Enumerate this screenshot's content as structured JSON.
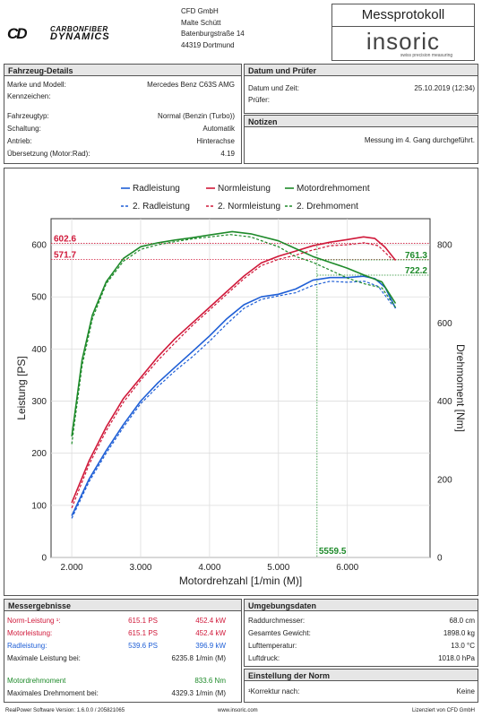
{
  "header": {
    "logo_cd": "CD",
    "brand_top": "CARBONFIBER",
    "brand_bottom": "DYNAMICS",
    "address": [
      "CFD GmbH",
      "Malte Schütt",
      "Batenburgstraße 14",
      "44319 Dortmund"
    ],
    "protocol_title": "Messprotokoll",
    "insoric": "insoric",
    "insoric_sub": "swiss precision measuring"
  },
  "vehicle": {
    "title": "Fahrzeug-Details",
    "rows": [
      {
        "label": "Marke und Modell:",
        "value": "Mercedes Benz C63S AMG"
      },
      {
        "label": "Kennzeichen:",
        "value": ""
      },
      {
        "label": "Fahrzeugtyp:",
        "value": "Normal (Benzin (Turbo))"
      },
      {
        "label": "Schaltung:",
        "value": "Automatik"
      },
      {
        "label": "Antrieb:",
        "value": "Hinterachse"
      },
      {
        "label": "Übersetzung (Motor:Rad):",
        "value": "4.19"
      }
    ]
  },
  "date": {
    "title": "Datum und Prüfer",
    "rows": [
      {
        "label": "Datum und Zeit:",
        "value": "25.10.2019 (12:34)"
      },
      {
        "label": "Prüfer:",
        "value": ""
      }
    ]
  },
  "notes": {
    "title": "Notizen",
    "text": "Messung im 4. Gang durchgeführt."
  },
  "chart_data": {
    "type": "line",
    "xlabel": "Motordrehzahl [1/min (M)]",
    "ylabel": "Leistung [PS]",
    "y2label": "Drehmoment [Nm]",
    "xlim": [
      1700,
      7200
    ],
    "ylim": [
      0,
      650
    ],
    "y2lim": [
      0,
      866.67
    ],
    "x_ticks": [
      {
        "v": 2000,
        "label": "2.000"
      },
      {
        "v": 3000,
        "label": "3.000"
      },
      {
        "v": 4000,
        "label": "4.000"
      },
      {
        "v": 5000,
        "label": "5.000"
      },
      {
        "v": 6000,
        "label": "6.000"
      }
    ],
    "y_ticks": [
      0,
      100,
      200,
      300,
      400,
      500,
      600
    ],
    "y2_ticks": [
      0,
      200,
      400,
      600,
      800
    ],
    "legend": [
      "Radleistung",
      "Normleistung",
      "Motordrehmoment",
      "2. Radleistung",
      "2. Normleistung",
      "2. Drehmoment"
    ],
    "colors": {
      "rad": "#1f5fd6",
      "norm": "#d0193a",
      "torque": "#1e8a2a"
    },
    "series": [
      {
        "name": "Radleistung",
        "axis": "left",
        "color": "#1f5fd6",
        "dash": false,
        "x": [
          2000,
          2250,
          2500,
          2750,
          3000,
          3250,
          3500,
          3750,
          4000,
          4250,
          4500,
          4750,
          5000,
          5250,
          5500,
          5750,
          6000,
          6235,
          6400,
          6550,
          6700
        ],
        "y": [
          80,
          150,
          205,
          255,
          300,
          335,
          365,
          395,
          425,
          458,
          485,
          500,
          505,
          515,
          532,
          537,
          537,
          539.6,
          535,
          518,
          478
        ]
      },
      {
        "name": "Normleistung",
        "axis": "left",
        "color": "#d0193a",
        "dash": false,
        "x": [
          2000,
          2250,
          2500,
          2750,
          3000,
          3250,
          3500,
          3750,
          4000,
          4250,
          4500,
          4750,
          5000,
          5250,
          5500,
          5750,
          6000,
          6235,
          6400,
          6550,
          6700
        ],
        "y": [
          105,
          185,
          250,
          305,
          345,
          385,
          420,
          450,
          480,
          510,
          540,
          565,
          578,
          588,
          598,
          605,
          610,
          615.1,
          612,
          595,
          570
        ]
      },
      {
        "name": "Motordrehmoment",
        "axis": "right",
        "color": "#1e8a2a",
        "dash": false,
        "x": [
          2000,
          2150,
          2300,
          2500,
          2750,
          3000,
          3250,
          3500,
          3750,
          4000,
          4329,
          4600,
          5000,
          5250,
          5500,
          5750,
          6000,
          6250,
          6500,
          6700
        ],
        "y": [
          310,
          505,
          620,
          705,
          765,
          795,
          805,
          812,
          818,
          825,
          833.6,
          828,
          810,
          790,
          770,
          755,
          740,
          722,
          705,
          650
        ]
      },
      {
        "name": "2. Radleistung",
        "axis": "left",
        "color": "#1f5fd6",
        "dash": true,
        "x": [
          2000,
          2250,
          2500,
          2750,
          3000,
          3250,
          3500,
          3750,
          4000,
          4250,
          4500,
          4750,
          5000,
          5250,
          5500,
          5750,
          6000,
          6250,
          6450,
          6650
        ],
        "y": [
          75,
          145,
          200,
          250,
          295,
          328,
          358,
          385,
          415,
          448,
          478,
          495,
          502,
          508,
          522,
          530,
          528,
          530,
          520,
          485
        ]
      },
      {
        "name": "2. Normleistung",
        "axis": "left",
        "color": "#d0193a",
        "dash": true,
        "x": [
          2000,
          2250,
          2500,
          2750,
          3000,
          3250,
          3500,
          3750,
          4000,
          4250,
          4500,
          4750,
          5000,
          5250,
          5500,
          5750,
          6000,
          6250,
          6450,
          6650
        ],
        "y": [
          95,
          178,
          243,
          298,
          340,
          378,
          412,
          445,
          475,
          505,
          535,
          560,
          572,
          580,
          590,
          598,
          600,
          604,
          598,
          572
        ]
      },
      {
        "name": "2. Drehmoment",
        "axis": "right",
        "color": "#1e8a2a",
        "dash": true,
        "x": [
          2000,
          2150,
          2300,
          2500,
          2750,
          3000,
          3250,
          3500,
          3750,
          4000,
          4300,
          4600,
          5000,
          5250,
          5500,
          5750,
          6000,
          6250,
          6500,
          6700
        ],
        "y": [
          290,
          490,
          610,
          700,
          758,
          788,
          800,
          808,
          815,
          820,
          826,
          820,
          795,
          770,
          755,
          735,
          715,
          700,
          690,
          640
        ]
      }
    ],
    "markers": {
      "x_vline": {
        "x": 5559.5,
        "label": "5559.5"
      },
      "left_hlines": [
        {
          "y": 602.6,
          "label": "602.6"
        },
        {
          "y": 571.7,
          "label": "571.7"
        }
      ],
      "right_hlines": [
        {
          "y": 761.3,
          "label": "761.3"
        },
        {
          "y": 722.2,
          "label": "722.2"
        }
      ]
    }
  },
  "results": {
    "title": "Messergebnisse",
    "rows": [
      {
        "label": "Norm-Leistung ¹:",
        "ps": "615.1 PS",
        "kw": "452.4 kW",
        "color": "#d0193a"
      },
      {
        "label": "Motorleistung:",
        "ps": "615.1 PS",
        "kw": "452.4 kW",
        "color": "#d0193a"
      },
      {
        "label": "Radleistung:",
        "ps": "539.6 PS",
        "kw": "396.9 kW",
        "color": "#1f5fd6"
      }
    ],
    "max_power_label": "Maximale Leistung bei:",
    "max_power_value": "6235.8 1/min (M)",
    "torque_label": "Motordrehmoment",
    "torque_value": "833.6 Nm",
    "max_torque_label": "Maximales Drehmoment bei:",
    "max_torque_value": "4329.3 1/min (M)"
  },
  "environment": {
    "title": "Umgebungsdaten",
    "rows": [
      {
        "label": "Raddurchmesser:",
        "value": "68.0 cm"
      },
      {
        "label": "Gesamtes Gewicht:",
        "value": "1898.0 kg"
      },
      {
        "label": "Lufttemperatur:",
        "value": "13.0 °C"
      },
      {
        "label": "Luftdruck:",
        "value": "1018.0 hPa"
      }
    ]
  },
  "norm": {
    "title": "Einstellung der Norm",
    "label": "¹Korrektur nach:",
    "value": "Keine"
  },
  "footer": {
    "left": "RealPower Software Version: 1.6.0.0 / 205821065",
    "center": "www.insoric.com",
    "right": "Lizenziert von CFD GmbH"
  }
}
